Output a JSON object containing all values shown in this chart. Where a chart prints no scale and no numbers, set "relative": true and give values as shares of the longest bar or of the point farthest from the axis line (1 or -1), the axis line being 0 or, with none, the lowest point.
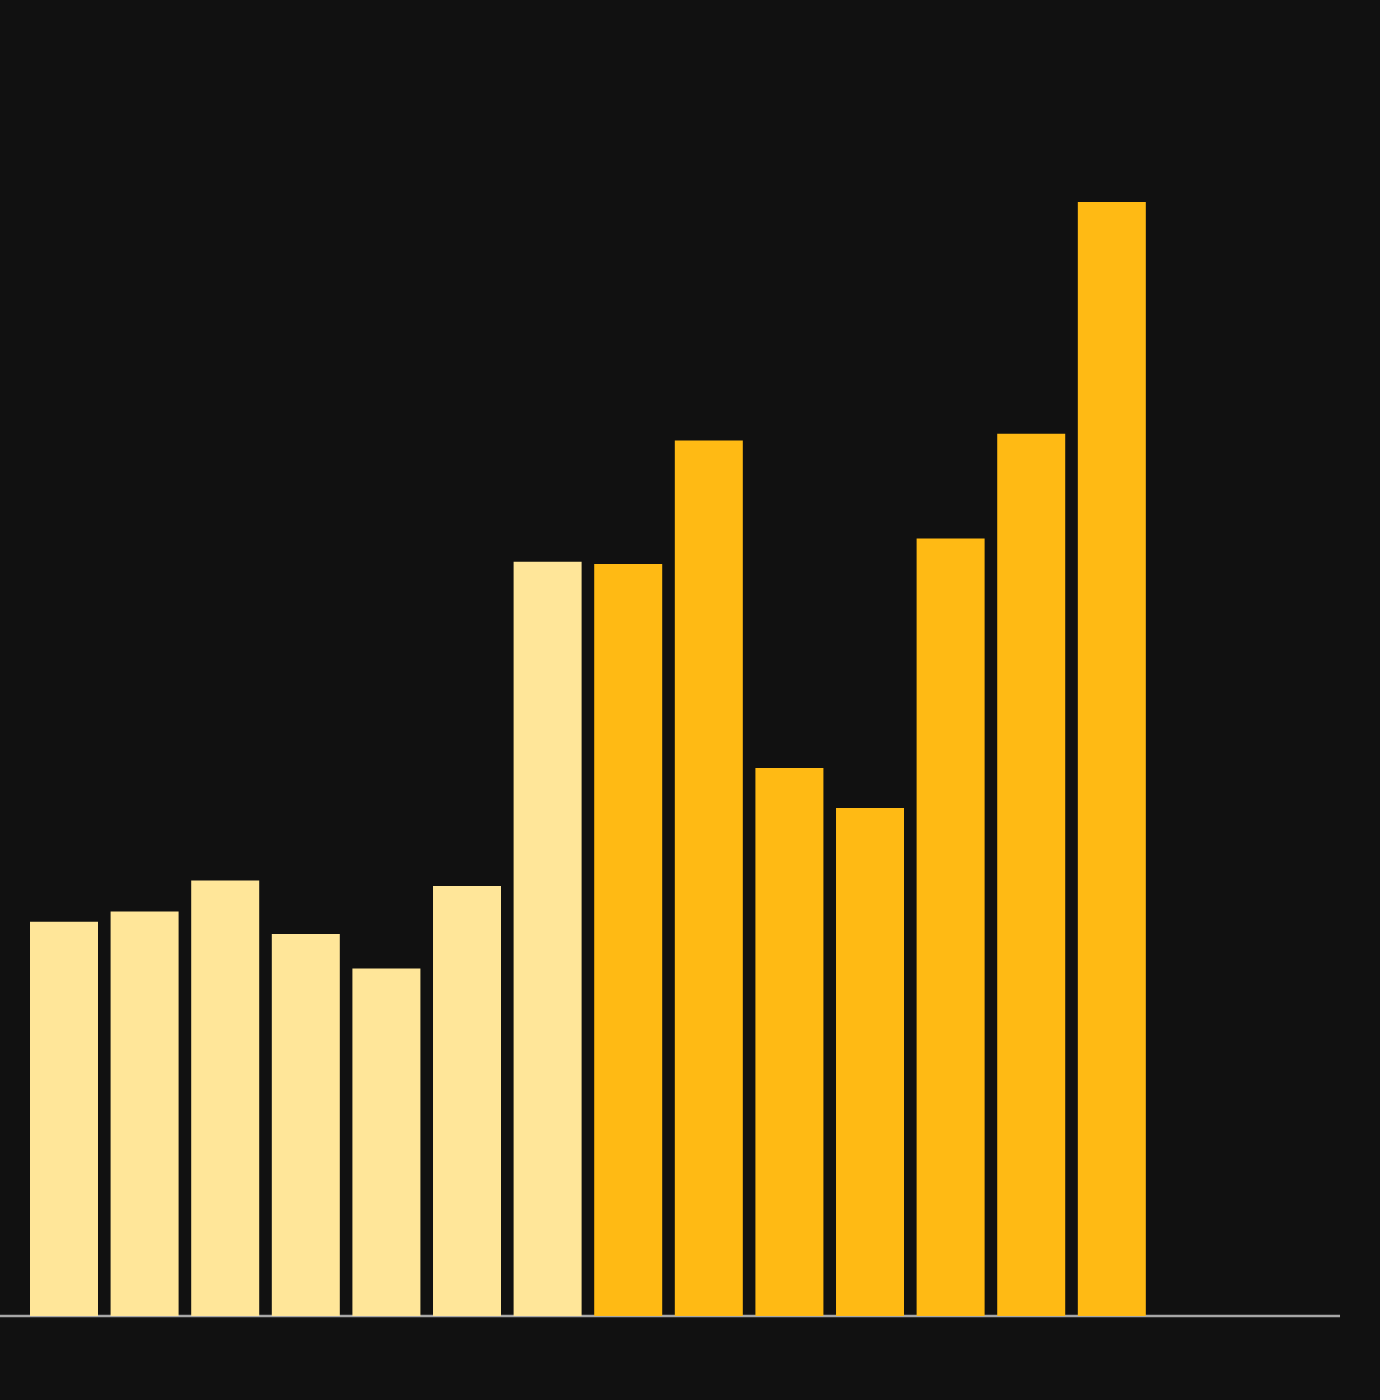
{
  "chart_data": {
    "type": "bar",
    "relative": true,
    "categories": [
      null,
      null,
      null,
      null,
      null,
      null,
      null,
      null,
      null,
      null,
      null,
      null,
      null,
      null
    ],
    "values": [
      0.354,
      0.363,
      0.391,
      0.343,
      0.312,
      0.386,
      0.677,
      0.675,
      0.786,
      0.492,
      0.456,
      0.698,
      0.792,
      1
    ],
    "colors": [
      "#ffe699",
      "#ffe699",
      "#ffe699",
      "#ffe699",
      "#ffe699",
      "#ffe699",
      "#ffe699",
      "#ffba14",
      "#ffba14",
      "#ffba14",
      "#ffba14",
      "#ffba14",
      "#ffba14",
      "#ffba14"
    ]
  }
}
